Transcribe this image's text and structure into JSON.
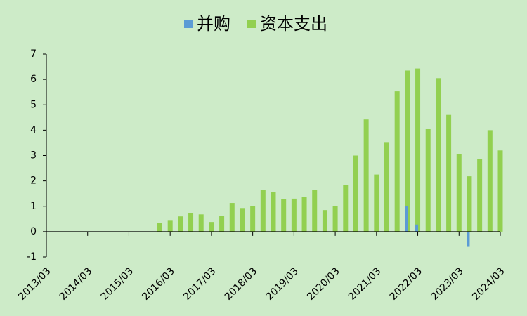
{
  "chart_data": {
    "type": "bar",
    "categories": [
      "2013/03",
      null,
      null,
      null,
      "2014/03",
      null,
      null,
      null,
      "2015/03",
      null,
      null,
      null,
      "2016/03",
      null,
      null,
      null,
      "2017/03",
      null,
      null,
      null,
      "2018/03",
      null,
      null,
      null,
      "2019/03",
      null,
      null,
      null,
      "2020/03",
      null,
      null,
      null,
      "2021/03",
      null,
      null,
      null,
      "2022/03",
      null,
      null,
      null,
      "2023/03",
      null,
      null,
      null,
      "2024/03"
    ],
    "series": [
      {
        "name": "资本支出",
        "color": "#92d050",
        "values": [
          null,
          null,
          null,
          null,
          null,
          null,
          null,
          null,
          null,
          null,
          null,
          0.35,
          0.43,
          0.6,
          0.72,
          0.68,
          0.38,
          0.63,
          1.13,
          0.93,
          1.02,
          1.65,
          1.57,
          1.27,
          1.3,
          1.38,
          1.65,
          0.85,
          1.02,
          1.85,
          3.0,
          4.42,
          2.25,
          3.53,
          5.53,
          6.35,
          6.43,
          4.06,
          6.05,
          4.6,
          3.06,
          2.18,
          2.87,
          4.0,
          3.2
        ]
      },
      {
        "name": "并购",
        "color": "#5b9bd5",
        "values": [
          null,
          null,
          null,
          null,
          null,
          null,
          null,
          null,
          null,
          null,
          null,
          null,
          null,
          null,
          null,
          null,
          null,
          null,
          null,
          null,
          null,
          null,
          null,
          null,
          null,
          null,
          null,
          null,
          null,
          null,
          null,
          null,
          null,
          null,
          null,
          1.0,
          0.28,
          null,
          null,
          null,
          null,
          -0.6,
          null,
          null,
          null
        ]
      }
    ],
    "ylim": [
      -1,
      7
    ],
    "yticks": [
      -1,
      0,
      1,
      2,
      3,
      4,
      5,
      6,
      7
    ]
  }
}
